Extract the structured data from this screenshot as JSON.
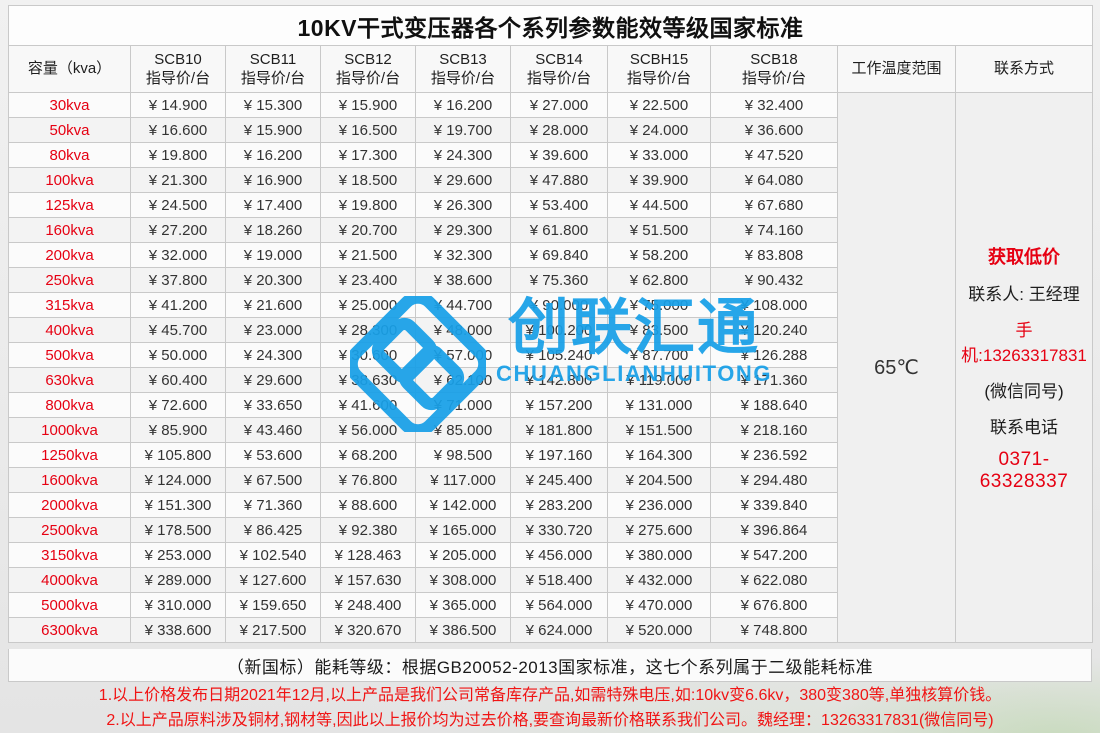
{
  "title": "10KV干式变压器各个系列参数能效等级国家标准",
  "table": {
    "capacity_header": "容量（kva）",
    "series_headers": [
      {
        "name": "SCB10",
        "sub": "指导价/台"
      },
      {
        "name": "SCB11",
        "sub": "指导价/台"
      },
      {
        "name": "SCB12",
        "sub": "指导价/台"
      },
      {
        "name": "SCB13",
        "sub": "指导价/台"
      },
      {
        "name": "SCB14",
        "sub": "指导价/台"
      },
      {
        "name": "SCBH15",
        "sub": "指导价/台"
      },
      {
        "name": "SCB18",
        "sub": "指导价/台"
      }
    ],
    "temp_header": "工作温度范围",
    "contact_header": "联系方式",
    "temperature": "65℃",
    "rows": [
      {
        "capacity": "30kva",
        "prices": [
          "¥ 14.900",
          "¥ 15.300",
          "¥ 15.900",
          "¥ 16.200",
          "¥ 27.000",
          "¥ 22.500",
          "¥ 32.400"
        ]
      },
      {
        "capacity": "50kva",
        "prices": [
          "¥ 16.600",
          "¥ 15.900",
          "¥ 16.500",
          "¥ 19.700",
          "¥ 28.000",
          "¥ 24.000",
          "¥ 36.600"
        ]
      },
      {
        "capacity": "80kva",
        "prices": [
          "¥ 19.800",
          "¥ 16.200",
          "¥ 17.300",
          "¥ 24.300",
          "¥ 39.600",
          "¥ 33.000",
          "¥ 47.520"
        ]
      },
      {
        "capacity": "100kva",
        "prices": [
          "¥ 21.300",
          "¥ 16.900",
          "¥ 18.500",
          "¥ 29.600",
          "¥ 47.880",
          "¥ 39.900",
          "¥ 64.080"
        ]
      },
      {
        "capacity": "125kva",
        "prices": [
          "¥ 24.500",
          "¥ 17.400",
          "¥ 19.800",
          "¥ 26.300",
          "¥ 53.400",
          "¥ 44.500",
          "¥ 67.680"
        ]
      },
      {
        "capacity": "160kva",
        "prices": [
          "¥ 27.200",
          "¥ 18.260",
          "¥ 20.700",
          "¥ 29.300",
          "¥ 61.800",
          "¥ 51.500",
          "¥ 74.160"
        ]
      },
      {
        "capacity": "200kva",
        "prices": [
          "¥ 32.000",
          "¥ 19.000",
          "¥ 21.500",
          "¥ 32.300",
          "¥ 69.840",
          "¥ 58.200",
          "¥ 83.808"
        ]
      },
      {
        "capacity": "250kva",
        "prices": [
          "¥ 37.800",
          "¥ 20.300",
          "¥ 23.400",
          "¥ 38.600",
          "¥ 75.360",
          "¥ 62.800",
          "¥ 90.432"
        ]
      },
      {
        "capacity": "315kva",
        "prices": [
          "¥ 41.200",
          "¥ 21.600",
          "¥ 25.000",
          "¥ 44.700",
          "¥ 90.000",
          "¥ 75.000",
          "¥ 108.000"
        ]
      },
      {
        "capacity": "400kva",
        "prices": [
          "¥ 45.700",
          "¥ 23.000",
          "¥ 28.300",
          "¥ 48.000",
          "¥ 100.200",
          "¥ 83.500",
          "¥ 120.240"
        ]
      },
      {
        "capacity": "500kva",
        "prices": [
          "¥ 50.000",
          "¥ 24.300",
          "¥ 30.600",
          "¥ 57.000",
          "¥ 105.240",
          "¥ 87.700",
          "¥ 126.288"
        ]
      },
      {
        "capacity": "630kva",
        "prices": [
          "¥ 60.400",
          "¥ 29.600",
          "¥ 38.630",
          "¥ 62.100",
          "¥ 142.800",
          "¥ 119.000",
          "¥ 171.360"
        ]
      },
      {
        "capacity": "800kva",
        "prices": [
          "¥ 72.600",
          "¥ 33.650",
          "¥ 41.600",
          "¥ 71.000",
          "¥ 157.200",
          "¥ 131.000",
          "¥ 188.640"
        ]
      },
      {
        "capacity": "1000kva",
        "prices": [
          "¥ 85.900",
          "¥ 43.460",
          "¥ 56.000",
          "¥ 85.000",
          "¥ 181.800",
          "¥ 151.500",
          "¥ 218.160"
        ]
      },
      {
        "capacity": "1250kva",
        "prices": [
          "¥ 105.800",
          "¥ 53.600",
          "¥ 68.200",
          "¥ 98.500",
          "¥ 197.160",
          "¥ 164.300",
          "¥ 236.592"
        ]
      },
      {
        "capacity": "1600kva",
        "prices": [
          "¥ 124.000",
          "¥ 67.500",
          "¥ 76.800",
          "¥ 117.000",
          "¥ 245.400",
          "¥ 204.500",
          "¥ 294.480"
        ]
      },
      {
        "capacity": "2000kva",
        "prices": [
          "¥ 151.300",
          "¥ 71.360",
          "¥ 88.600",
          "¥ 142.000",
          "¥ 283.200",
          "¥ 236.000",
          "¥ 339.840"
        ]
      },
      {
        "capacity": "2500kva",
        "prices": [
          "¥ 178.500",
          "¥ 86.425",
          "¥ 92.380",
          "¥ 165.000",
          "¥ 330.720",
          "¥ 275.600",
          "¥ 396.864"
        ]
      },
      {
        "capacity": "3150kva",
        "prices": [
          "¥ 253.000",
          "¥ 102.540",
          "¥ 128.463",
          "¥ 205.000",
          "¥ 456.000",
          "¥ 380.000",
          "¥ 547.200"
        ]
      },
      {
        "capacity": "4000kva",
        "prices": [
          "¥ 289.000",
          "¥ 127.600",
          "¥ 157.630",
          "¥ 308.000",
          "¥ 518.400",
          "¥ 432.000",
          "¥ 622.080"
        ]
      },
      {
        "capacity": "5000kva",
        "prices": [
          "¥ 310.000",
          "¥ 159.650",
          "¥ 248.400",
          "¥ 365.000",
          "¥ 564.000",
          "¥ 470.000",
          "¥ 676.800"
        ]
      },
      {
        "capacity": "6300kva",
        "prices": [
          "¥ 338.600",
          "¥ 217.500",
          "¥ 320.670",
          "¥ 386.500",
          "¥ 624.000",
          "¥ 520.000",
          "¥ 748.800"
        ]
      }
    ]
  },
  "contact": {
    "promo": "获取低价",
    "person": "联系人: 王经理",
    "mobile": "手机:13263317831",
    "wechat_note": "(微信同号)",
    "phone_label": "联系电话",
    "phone": "0371-63328337"
  },
  "watermark": {
    "cn": "创联汇通",
    "en": "CHUANGLIANHUITONG",
    "color": "#18a0e8"
  },
  "footer": {
    "standard_note": "（新国标）能耗等级：根据GB20052-2013国家标准，这七个系列属于二级能耗标准",
    "note1": "1.以上价格发布日期2021年12月,以上产品是我们公司常备库存产品,如需特殊电压,如:10kv变6.6kv，380变380等,单独核算价钱。",
    "note2": "2.以上产品原料涉及铜材,钢材等,因此以上报价均为过去价格,要查询最新价格联系我们公司。魏经理：13263317831(微信同号)"
  },
  "colors": {
    "accent_red": "#e60012",
    "price_text": "#333333",
    "logo_blue": "#18a0e8",
    "border_gray": "#c9c9c9"
  }
}
